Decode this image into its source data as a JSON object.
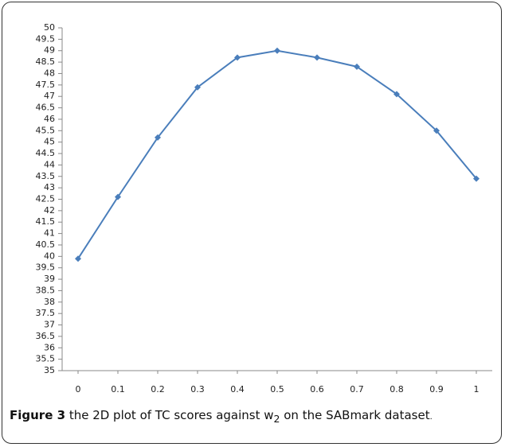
{
  "chart_data": {
    "type": "line",
    "x": [
      0,
      0.1,
      0.2,
      0.3,
      0.4,
      0.5,
      0.6,
      0.7,
      0.8,
      0.9,
      1
    ],
    "xticks": [
      0,
      0.1,
      0.2,
      0.3,
      0.4,
      0.5,
      0.6,
      0.7,
      0.8,
      0.9,
      1
    ],
    "xlim": [
      0,
      1
    ],
    "values": [
      39.9,
      42.6,
      45.2,
      47.4,
      48.7,
      49.0,
      48.7,
      48.3,
      47.1,
      45.5,
      43.4
    ],
    "color": "#4a7ebb",
    "ylim": [
      35,
      50
    ],
    "yticks": [
      35,
      35.5,
      36,
      36.5,
      37,
      37.5,
      38,
      38.5,
      39,
      39.5,
      40,
      40.5,
      41,
      41.5,
      42,
      42.5,
      43,
      43.5,
      44,
      44.5,
      45,
      45.5,
      46,
      46.5,
      47,
      47.5,
      48,
      48.5,
      49,
      49.5,
      50
    ],
    "grid": false,
    "caption": {
      "label": "Figure 3",
      "text_1": " the 2D plot of TC scores against w",
      "sub": "2",
      "text_2": " on the SABmark dataset",
      "end": "."
    }
  }
}
